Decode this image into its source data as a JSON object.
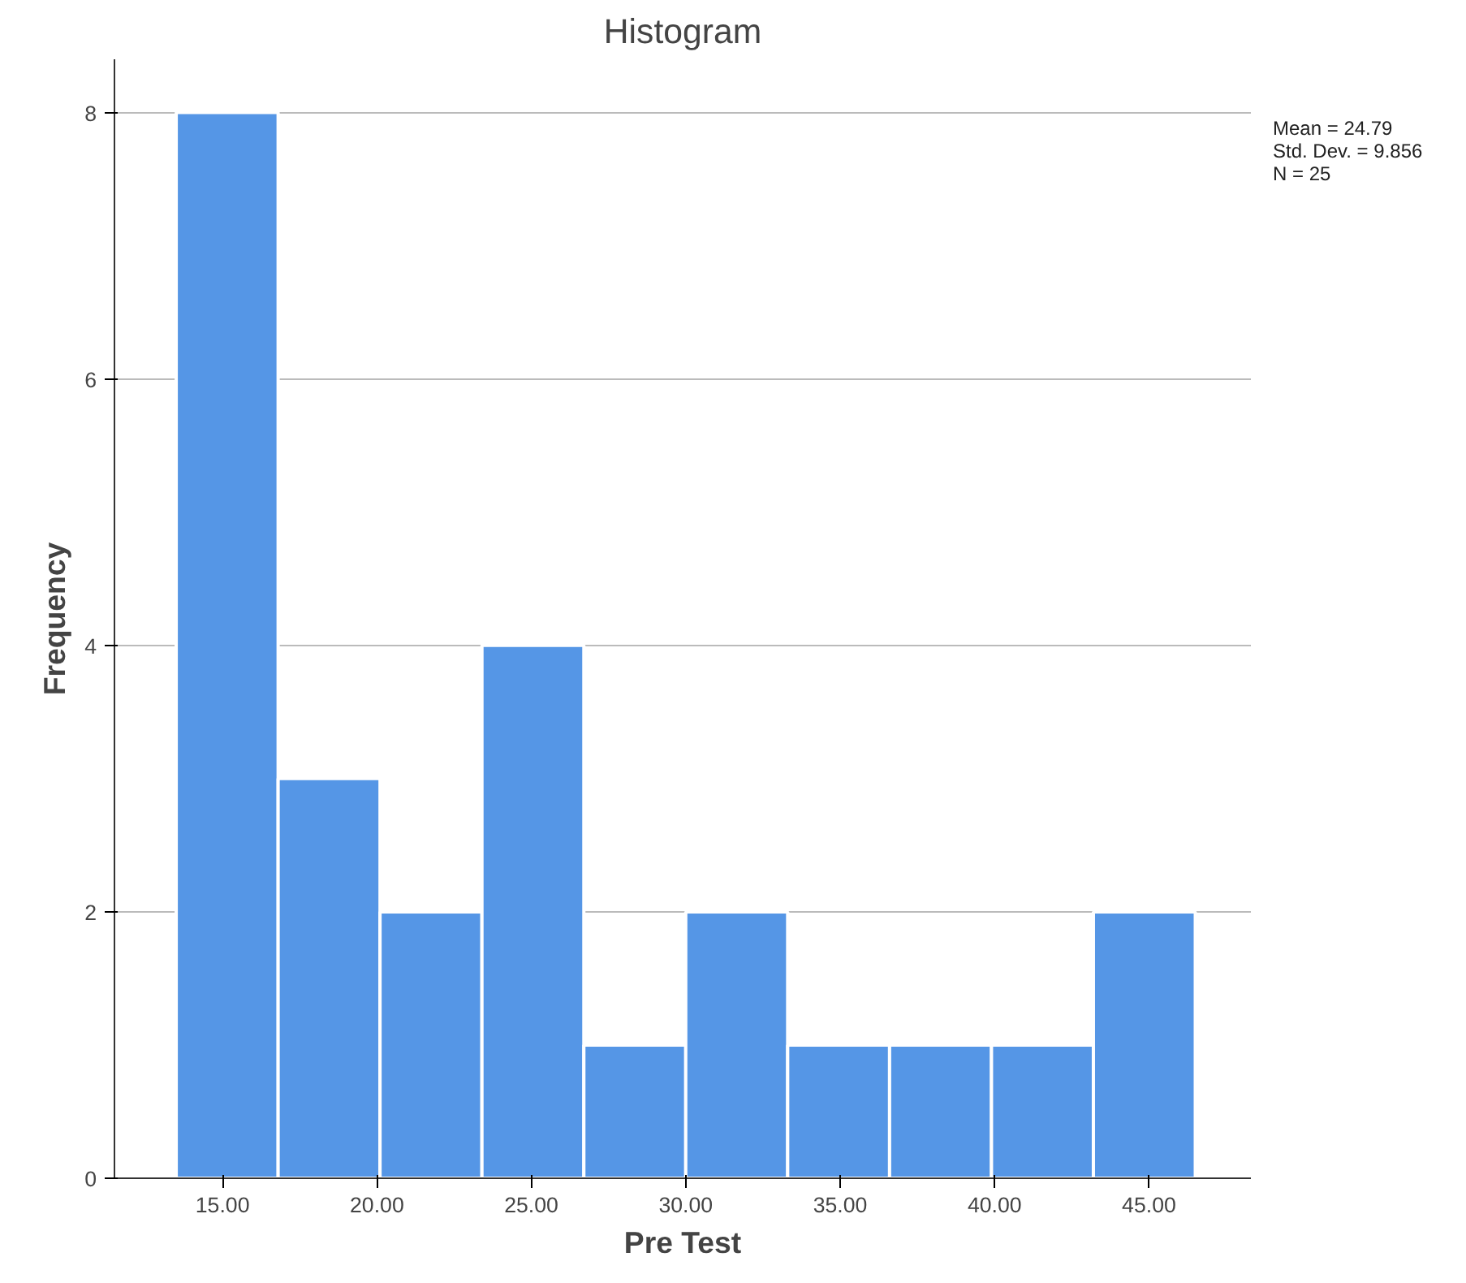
{
  "chart_data": {
    "type": "histogram",
    "title": "Histogram",
    "xlabel": "Pre Test",
    "ylabel": "Frequency",
    "bins": [
      13.5,
      16.8,
      20.1,
      23.4,
      26.7,
      30.0,
      33.3,
      36.6,
      39.9,
      43.2,
      46.5
    ],
    "values": [
      8,
      3,
      2,
      4,
      1,
      2,
      1,
      1,
      1,
      2
    ],
    "color": "#5596e6",
    "xlim": [
      11.5,
      48.3
    ],
    "ylim": [
      0,
      8.4
    ],
    "xticks": [
      {
        "value": 15,
        "label": "15.00"
      },
      {
        "value": 20,
        "label": "20.00"
      },
      {
        "value": 25,
        "label": "25.00"
      },
      {
        "value": 30,
        "label": "30.00"
      },
      {
        "value": 35,
        "label": "35.00"
      },
      {
        "value": 40,
        "label": "40.00"
      },
      {
        "value": 45,
        "label": "45.00"
      }
    ],
    "yticks": [
      0,
      2,
      4,
      6,
      8
    ],
    "grid": "y",
    "annotations": [
      "Mean = 24.79",
      "Std. Dev. = 9.856",
      "N = 25"
    ]
  }
}
